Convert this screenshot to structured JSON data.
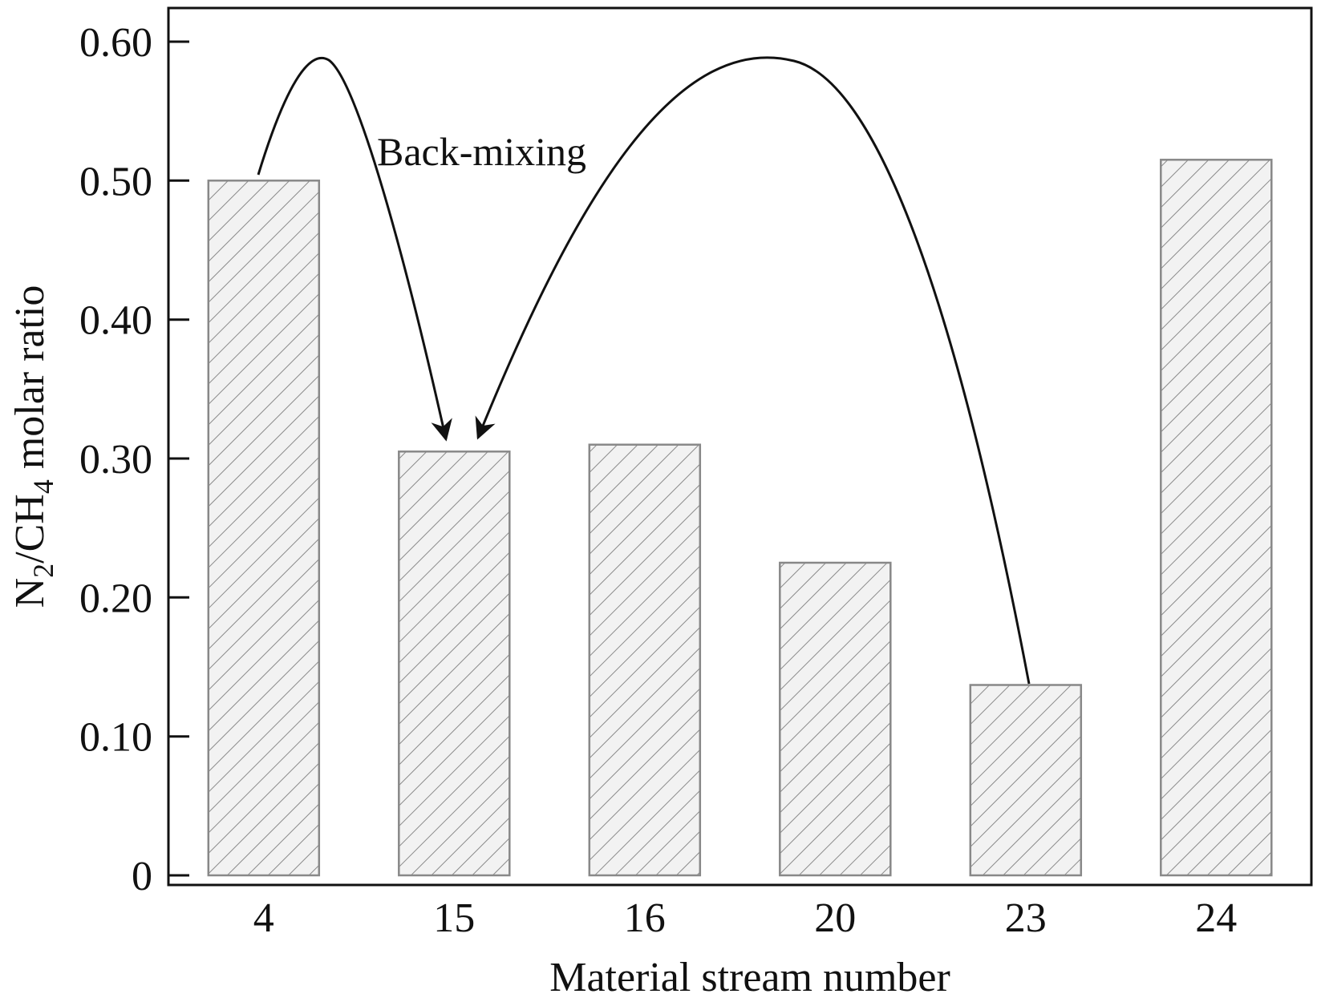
{
  "chart_data": {
    "type": "bar",
    "categories": [
      "4",
      "15",
      "16",
      "20",
      "23",
      "24"
    ],
    "values": [
      0.5,
      0.305,
      0.31,
      0.225,
      0.137,
      0.515
    ],
    "xlabel": "Material stream number",
    "ylabel": {
      "parts": [
        "N",
        "2",
        "/CH",
        "4",
        " molar ratio"
      ],
      "text": "N2/CH4 molar ratio"
    },
    "yticks": [
      "0",
      "0.10",
      "0.20",
      "0.30",
      "0.40",
      "0.50",
      "0.60"
    ],
    "ylim": [
      0,
      0.6
    ],
    "grid": false,
    "bar_pattern": "diagonal-hatch",
    "colors": {
      "bar_fill": "#f2f2f2",
      "hatch": "#8a8a8a",
      "bar_edge": "#888888",
      "axis": "#111111"
    },
    "annotations": [
      {
        "text": "Back-mixing",
        "arrows": [
          {
            "from": "4",
            "to": "15"
          },
          {
            "from": "23",
            "to": "15"
          }
        ]
      }
    ]
  }
}
